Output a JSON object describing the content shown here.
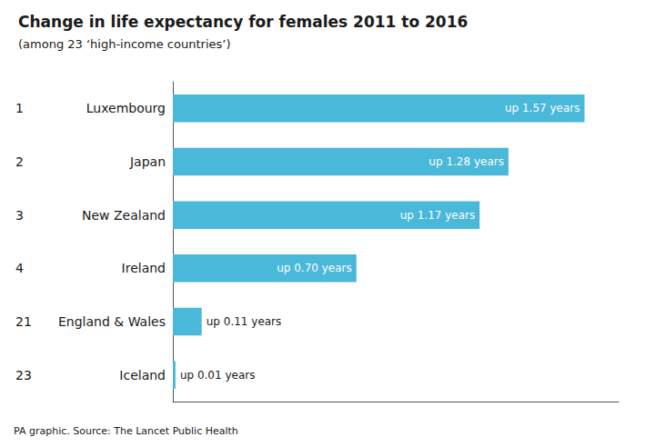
{
  "chart_data": {
    "type": "bar",
    "orientation": "horizontal",
    "title": "Change in life expectancy for females 2011 to 2016",
    "subtitle": "(among 23 ‘high-income countries’)",
    "annotations": [
      "PA graphic. Source: The Lancet Public Health"
    ],
    "categories": [
      "Luxembourg",
      "Japan",
      "New Zealand",
      "Ireland",
      "England & Wales",
      "Iceland"
    ],
    "ranks": [
      "1",
      "2",
      "3",
      "4",
      "21",
      "23"
    ],
    "values": [
      1.57,
      1.28,
      1.17,
      0.7,
      0.11,
      0.01
    ],
    "value_labels": [
      "up 1.57 years",
      "up 1.28 years",
      "up 1.17 years",
      "up 0.70 years",
      "up 0.11 years",
      "up 0.01 years"
    ],
    "data_labels": true,
    "color": "#4ab8d8",
    "xlim": [
      0,
      1.7
    ],
    "tick_labels": false,
    "grid": false
  }
}
